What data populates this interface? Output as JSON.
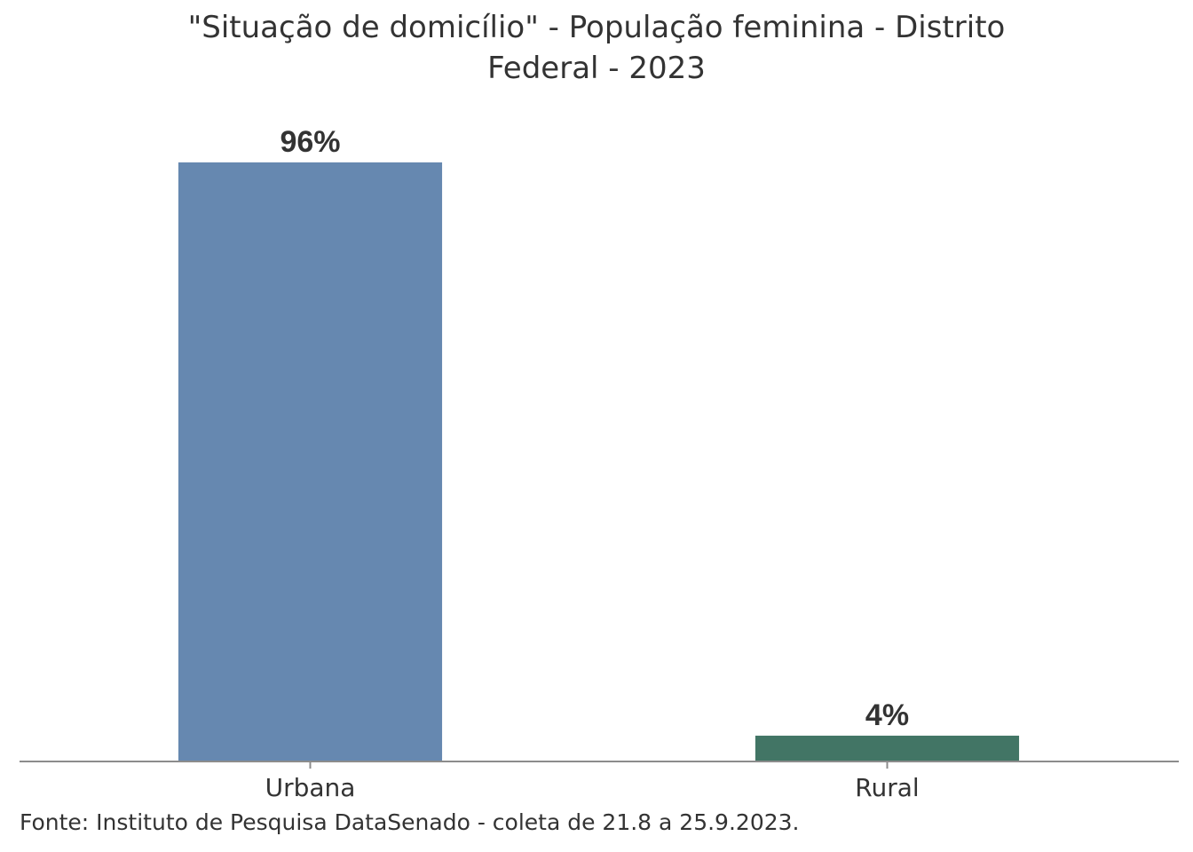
{
  "chart_data": {
    "type": "bar",
    "title_line1": "\"Situação de domicílio\" - População feminina - Distrito",
    "title_line2": "Federal - 2023",
    "categories": [
      "Urbana",
      "Rural"
    ],
    "values": [
      96,
      4
    ],
    "value_labels": [
      "96%",
      "4%"
    ],
    "colors": [
      "#6688b0",
      "#427565"
    ],
    "xlabel": "",
    "ylabel": "",
    "ylim": [
      0,
      96
    ],
    "grid": false,
    "legend": "none"
  },
  "source": "Fonte: Instituto de Pesquisa DataSenado - coleta de 21.8 a 25.9.2023."
}
